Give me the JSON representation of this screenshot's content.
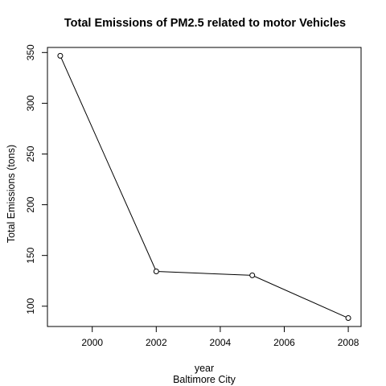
{
  "chart_data": {
    "type": "line",
    "title": "Total Emissions of PM2.5 related to motor Vehicles",
    "xlabel": "year",
    "subtitle": "Baltimore City",
    "ylabel": "Total Emissions (tons)",
    "x": [
      1999,
      2002,
      2005,
      2008
    ],
    "series": [
      {
        "values": [
          346.8,
          134.3,
          130.4,
          88.3
        ]
      }
    ],
    "xlim": [
      1998.6,
      2008.4
    ],
    "ylim": [
      80,
      355
    ],
    "xticks": [
      2000,
      2002,
      2004,
      2006,
      2008
    ],
    "yticks": [
      100,
      150,
      200,
      250,
      300,
      350
    ],
    "marker": "open-circle",
    "grid": false,
    "legend": "none"
  }
}
